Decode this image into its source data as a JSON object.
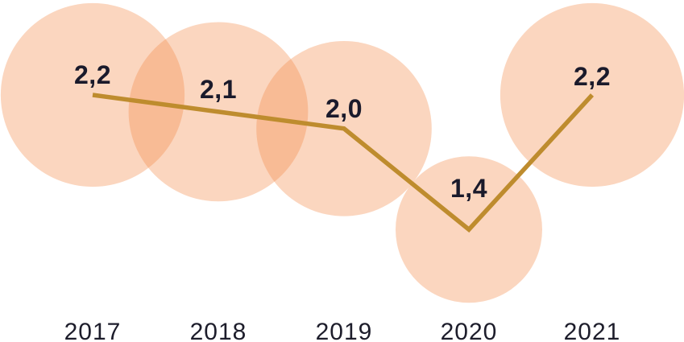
{
  "chart_data": {
    "type": "bubble-line",
    "categories": [
      "2017",
      "2018",
      "2019",
      "2020",
      "2021"
    ],
    "values": [
      2.2,
      2.1,
      2.0,
      1.4,
      2.2
    ],
    "value_labels": [
      "2,2",
      "2,1",
      "2,0",
      "1,4",
      "2,2"
    ],
    "decimal_separator": ",",
    "title": "",
    "xlabel": "",
    "ylabel": "",
    "legend": null,
    "grid": false,
    "axes_visible": false,
    "bubble_size_encoding": "area proportional to value",
    "ylim_visible_points": [
      1.4,
      2.2
    ],
    "colors": {
      "bubble_fill": "#F48A48",
      "bubble_opacity": 0.35,
      "line": "#BE8C2E",
      "value_label": "#1A1A2B",
      "category_label": "#1D1D2B",
      "background": "#FFFFFF"
    }
  }
}
